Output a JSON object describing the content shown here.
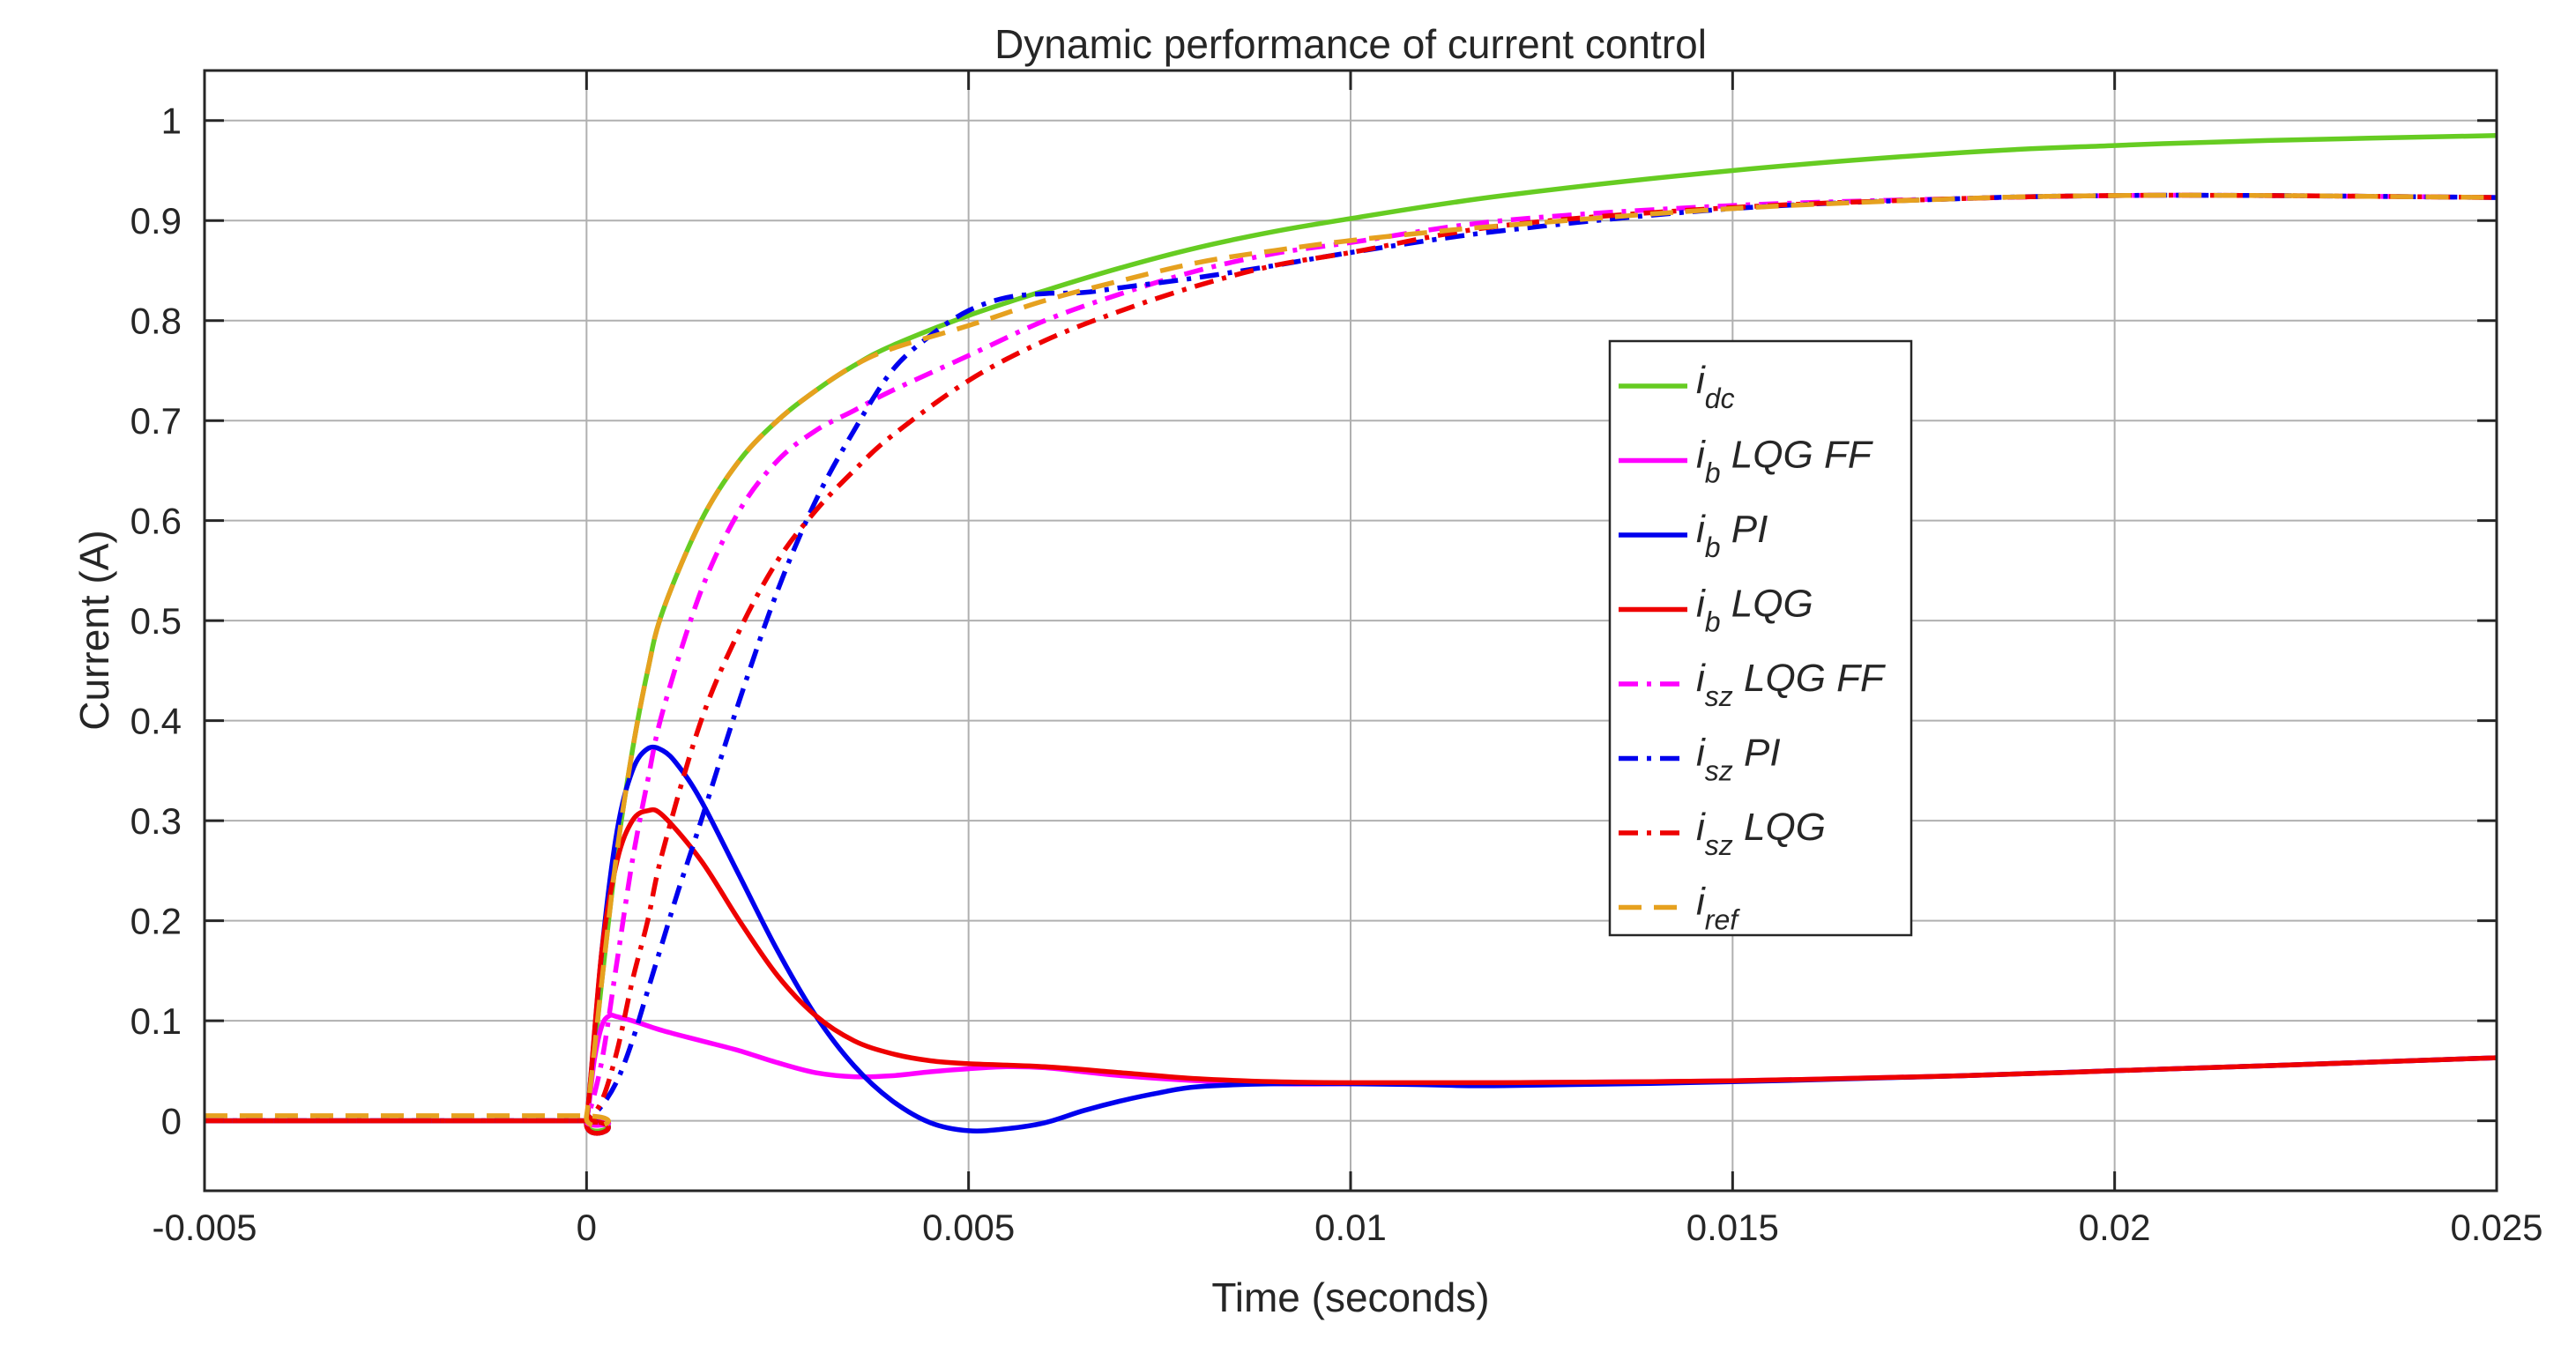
{
  "chart_data": {
    "type": "line",
    "title": "Dynamic performance of current control",
    "xlabel": "Time (seconds)",
    "ylabel": "Current (A)",
    "xlim": [
      -0.005,
      0.025
    ],
    "ylim": [
      -0.07,
      1.05
    ],
    "xticks": [
      -0.005,
      0,
      0.005,
      0.01,
      0.015,
      0.02,
      0.025
    ],
    "xtick_labels": [
      "-0.005",
      "0",
      "0.005",
      "0.01",
      "0.015",
      "0.02",
      "0.025"
    ],
    "yticks": [
      0,
      0.1,
      0.2,
      0.3,
      0.4,
      0.5,
      0.6,
      0.7,
      0.8,
      0.9,
      1
    ],
    "ytick_labels": [
      "0",
      "0.1",
      "0.2",
      "0.3",
      "0.4",
      "0.5",
      "0.6",
      "0.7",
      "0.8",
      "0.9",
      "1"
    ],
    "grid": true,
    "legend_position": "center-right",
    "series": [
      {
        "name": "i_dc",
        "label_main": "i",
        "label_sub": "dc",
        "label_suffix": "",
        "color": "#66cc22",
        "style": "solid",
        "x": [
          -0.005,
          -0.0001,
          0,
          0.0002,
          0.0004,
          0.0006,
          0.0008,
          0.001,
          0.0015,
          0.002,
          0.0025,
          0.003,
          0.0035,
          0.004,
          0.005,
          0.006,
          0.007,
          0.008,
          0.009,
          0.01,
          0.012,
          0.015,
          0.018,
          0.02,
          0.022,
          0.025
        ],
        "y": [
          0,
          0,
          0,
          0.14,
          0.27,
          0.37,
          0.45,
          0.51,
          0.6,
          0.66,
          0.7,
          0.73,
          0.755,
          0.775,
          0.805,
          0.83,
          0.853,
          0.873,
          0.889,
          0.902,
          0.925,
          0.95,
          0.968,
          0.975,
          0.98,
          0.985
        ]
      },
      {
        "name": "i_b LQG FF",
        "label_main": "i",
        "label_sub": "b",
        "label_suffix": " LQG FF",
        "color": "#ff00ff",
        "style": "solid",
        "x": [
          -0.005,
          -0.0001,
          0,
          0.0001,
          0.0002,
          0.0003,
          0.0004,
          0.0006,
          0.001,
          0.0015,
          0.002,
          0.0025,
          0.003,
          0.0035,
          0.004,
          0.0045,
          0.005,
          0.0055,
          0.006,
          0.0065,
          0.007,
          0.008,
          0.009,
          0.01,
          0.012,
          0.015,
          0.018,
          0.02,
          0.022,
          0.025
        ],
        "y": [
          0,
          0,
          0,
          0.06,
          0.095,
          0.105,
          0.104,
          0.1,
          0.09,
          0.08,
          0.07,
          0.058,
          0.048,
          0.044,
          0.045,
          0.049,
          0.052,
          0.054,
          0.053,
          0.049,
          0.045,
          0.04,
          0.037,
          0.037,
          0.038,
          0.04,
          0.045,
          0.05,
          0.055,
          0.063
        ]
      },
      {
        "name": "i_b PI",
        "label_main": "i",
        "label_sub": "b",
        "label_suffix": " PI",
        "color": "#0000ee",
        "style": "solid",
        "x": [
          -0.005,
          -0.0001,
          0,
          0.0002,
          0.0004,
          0.0006,
          0.0008,
          0.001,
          0.0012,
          0.0015,
          0.002,
          0.0025,
          0.003,
          0.0035,
          0.004,
          0.0045,
          0.005,
          0.0055,
          0.006,
          0.0065,
          0.007,
          0.0075,
          0.008,
          0.009,
          0.01,
          0.011,
          0.012,
          0.015,
          0.018,
          0.02,
          0.022,
          0.025
        ],
        "y": [
          0,
          0,
          0,
          0.17,
          0.29,
          0.35,
          0.372,
          0.37,
          0.355,
          0.32,
          0.245,
          0.17,
          0.105,
          0.055,
          0.02,
          -0.002,
          -0.01,
          -0.008,
          -0.002,
          0.01,
          0.02,
          0.028,
          0.034,
          0.037,
          0.037,
          0.036,
          0.035,
          0.039,
          0.045,
          0.05,
          0.055,
          0.063
        ]
      },
      {
        "name": "i_b LQG",
        "label_main": "i",
        "label_sub": "b",
        "label_suffix": " LQG",
        "color": "#ee0000",
        "style": "solid",
        "x": [
          -0.005,
          -0.0001,
          0,
          0.0002,
          0.0004,
          0.0006,
          0.0008,
          0.001,
          0.0015,
          0.002,
          0.0025,
          0.003,
          0.0035,
          0.004,
          0.0045,
          0.005,
          0.006,
          0.007,
          0.008,
          0.009,
          0.01,
          0.012,
          0.015,
          0.018,
          0.02,
          0.022,
          0.025
        ],
        "y": [
          0,
          0,
          0,
          0.17,
          0.26,
          0.3,
          0.31,
          0.305,
          0.26,
          0.2,
          0.145,
          0.105,
          0.08,
          0.067,
          0.06,
          0.057,
          0.054,
          0.048,
          0.042,
          0.039,
          0.038,
          0.038,
          0.04,
          0.045,
          0.05,
          0.055,
          0.063
        ]
      },
      {
        "name": "i_sz LQG FF",
        "label_main": "i",
        "label_sub": "sz",
        "label_suffix": " LQG FF",
        "color": "#ff00ff",
        "style": "dashdot",
        "x": [
          -0.005,
          -0.0001,
          0,
          0.0002,
          0.0004,
          0.0006,
          0.0008,
          0.001,
          0.0015,
          0.002,
          0.0025,
          0.003,
          0.0035,
          0.004,
          0.005,
          0.006,
          0.007,
          0.008,
          0.009,
          0.01,
          0.012,
          0.015,
          0.018,
          0.02,
          0.022,
          0.025
        ],
        "y": [
          0,
          0,
          0,
          0.06,
          0.16,
          0.26,
          0.34,
          0.41,
          0.53,
          0.61,
          0.66,
          0.69,
          0.71,
          0.73,
          0.765,
          0.8,
          0.827,
          0.85,
          0.867,
          0.878,
          0.9,
          0.915,
          0.922,
          0.925,
          0.925,
          0.923
        ]
      },
      {
        "name": "i_sz PI",
        "label_main": "i",
        "label_sub": "sz",
        "label_suffix": " PI",
        "color": "#0000ee",
        "style": "dashdot",
        "x": [
          -0.005,
          -0.0001,
          0,
          0.0002,
          0.0004,
          0.0006,
          0.0008,
          0.001,
          0.0012,
          0.0015,
          0.002,
          0.0025,
          0.003,
          0.0035,
          0.004,
          0.0045,
          0.005,
          0.0055,
          0.006,
          0.0065,
          0.007,
          0.008,
          0.009,
          0.01,
          0.012,
          0.015,
          0.018,
          0.02,
          0.022,
          0.025
        ],
        "y": [
          0,
          0,
          0,
          0.015,
          0.04,
          0.08,
          0.13,
          0.18,
          0.23,
          0.3,
          0.42,
          0.53,
          0.62,
          0.69,
          0.75,
          0.785,
          0.81,
          0.823,
          0.827,
          0.828,
          0.833,
          0.843,
          0.855,
          0.868,
          0.89,
          0.912,
          0.922,
          0.925,
          0.925,
          0.923
        ]
      },
      {
        "name": "i_sz LQG",
        "label_main": "i",
        "label_sub": "sz",
        "label_suffix": " LQG",
        "color": "#ee0000",
        "style": "dashdot",
        "x": [
          -0.005,
          -0.0001,
          0,
          0.0002,
          0.0004,
          0.0006,
          0.0008,
          0.001,
          0.0015,
          0.002,
          0.0025,
          0.003,
          0.0035,
          0.004,
          0.005,
          0.006,
          0.007,
          0.008,
          0.009,
          0.01,
          0.012,
          0.015,
          0.018,
          0.02,
          0.022,
          0.025
        ],
        "y": [
          0,
          0,
          0,
          0.02,
          0.07,
          0.14,
          0.2,
          0.27,
          0.4,
          0.49,
          0.56,
          0.61,
          0.65,
          0.685,
          0.74,
          0.78,
          0.81,
          0.835,
          0.855,
          0.868,
          0.895,
          0.913,
          0.922,
          0.925,
          0.925,
          0.923
        ]
      },
      {
        "name": "i_ref",
        "label_main": "i",
        "label_sub": "ref",
        "label_suffix": "",
        "color": "#e6a11f",
        "style": "dashed",
        "x": [
          -0.005,
          -0.0001,
          0,
          0.0002,
          0.0004,
          0.0006,
          0.0008,
          0.001,
          0.0015,
          0.002,
          0.0025,
          0.003,
          0.0035,
          0.004,
          0.005,
          0.006,
          0.007,
          0.008,
          0.009,
          0.01,
          0.011,
          0.012,
          0.015,
          0.018,
          0.02,
          0.022,
          0.025
        ],
        "y": [
          0.005,
          0.005,
          0.005,
          0.14,
          0.27,
          0.37,
          0.45,
          0.51,
          0.6,
          0.66,
          0.7,
          0.73,
          0.755,
          0.772,
          0.795,
          0.82,
          0.84,
          0.858,
          0.87,
          0.88,
          0.888,
          0.895,
          0.912,
          0.922,
          0.925,
          0.925,
          0.923
        ]
      }
    ]
  }
}
